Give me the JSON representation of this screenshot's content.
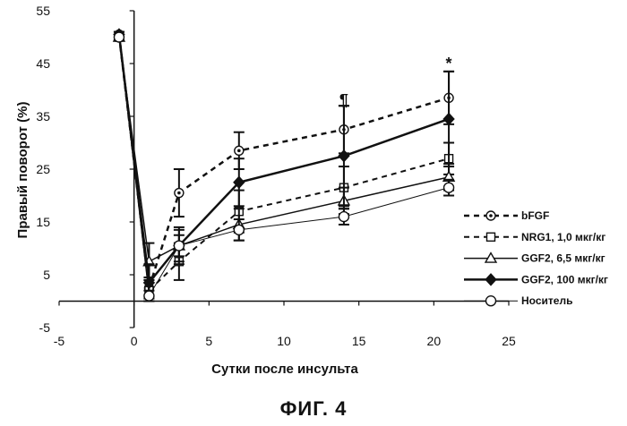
{
  "figure_caption": "ФИГ. 4",
  "chart_data": {
    "type": "line",
    "title": "",
    "xlabel": "Сутки после инсульта",
    "ylabel": "Правый поворот (%)",
    "xlim": [
      -5,
      25
    ],
    "ylim": [
      -5,
      55
    ],
    "xticks": [
      -5,
      0,
      5,
      10,
      15,
      20,
      25
    ],
    "yticks": [
      -5,
      5,
      15,
      25,
      35,
      45,
      55
    ],
    "grid": false,
    "legend_position": "right",
    "x": [
      -1,
      1,
      3,
      7,
      14,
      21
    ],
    "series": [
      {
        "name": "bFGF",
        "values": [
          50.5,
          2.5,
          20.5,
          28.5,
          32.5,
          38.5
        ],
        "errors": [
          0.5,
          2.0,
          4.5,
          3.5,
          4.5,
          5.0
        ],
        "line": "dashed",
        "marker": "circle-dot",
        "width": 2.5
      },
      {
        "name": "NRG1, 1,0 мкг/кг",
        "values": [
          50.0,
          2.0,
          7.5,
          17.0,
          21.5,
          27.0
        ],
        "errors": [
          0.5,
          2.0,
          3.5,
          4.0,
          4.0,
          3.0
        ],
        "line": "dashed",
        "marker": "square-open",
        "width": 2
      },
      {
        "name": "GGF2, 6,5 мкг/кг",
        "values": [
          50.0,
          7.5,
          10.5,
          14.5,
          19.0,
          23.5
        ],
        "errors": [
          0.5,
          3.5,
          3.0,
          3.0,
          2.5,
          2.5
        ],
        "line": "solid",
        "marker": "triangle-open",
        "width": 1.5
      },
      {
        "name": "GGF2, 100 мкг/кг",
        "values": [
          50.5,
          3.5,
          10.5,
          22.5,
          27.5,
          34.5
        ],
        "errors": [
          0.5,
          3.5,
          3.5,
          4.5,
          9.5,
          9.0
        ],
        "line": "solid",
        "marker": "diamond-filled",
        "width": 2.5
      },
      {
        "name": "Носитель",
        "values": [
          50.0,
          1.0,
          10.5,
          13.5,
          16.0,
          21.5
        ],
        "errors": [
          0.5,
          1.0,
          2.0,
          2.0,
          1.5,
          1.5
        ],
        "line": "solid",
        "marker": "circle-open",
        "width": 1
      }
    ],
    "annotations": [
      {
        "text": "¶",
        "x": 14,
        "y": 37
      },
      {
        "text": "*",
        "x": 21,
        "y": 44
      }
    ]
  }
}
